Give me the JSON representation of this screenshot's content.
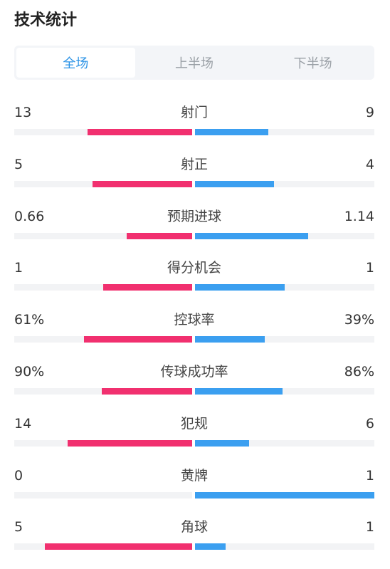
{
  "header": {
    "title": "技术统计"
  },
  "tabs": [
    {
      "label": "全场",
      "active": true
    },
    {
      "label": "上半场",
      "active": false
    },
    {
      "label": "下半场",
      "active": false
    }
  ],
  "colors": {
    "home": "#f1306f",
    "away": "#3b9ff0",
    "active_tab": "#2b93e6"
  },
  "stats": [
    {
      "label": "射门",
      "home": "13",
      "away": "9",
      "home_share": 0.59,
      "away_share": 0.41
    },
    {
      "label": "射正",
      "home": "5",
      "away": "4",
      "home_share": 0.56,
      "away_share": 0.44
    },
    {
      "label": "预期进球",
      "home": "0.66",
      "away": "1.14",
      "home_share": 0.37,
      "away_share": 0.63
    },
    {
      "label": "得分机会",
      "home": "1",
      "away": "1",
      "home_share": 0.5,
      "away_share": 0.5
    },
    {
      "label": "控球率",
      "home": "61%",
      "away": "39%",
      "home_share": 0.61,
      "away_share": 0.39
    },
    {
      "label": "传球成功率",
      "home": "90%",
      "away": "86%",
      "home_share": 0.51,
      "away_share": 0.49
    },
    {
      "label": "犯规",
      "home": "14",
      "away": "6",
      "home_share": 0.7,
      "away_share": 0.3
    },
    {
      "label": "黄牌",
      "home": "0",
      "away": "1",
      "home_share": 0.0,
      "away_share": 1.0
    },
    {
      "label": "角球",
      "home": "5",
      "away": "1",
      "home_share": 0.83,
      "away_share": 0.17
    }
  ]
}
